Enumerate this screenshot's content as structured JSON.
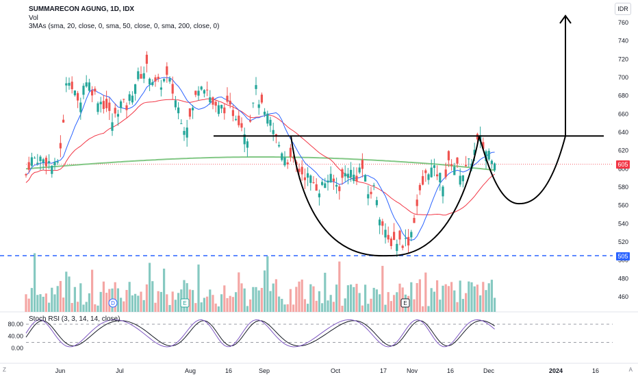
{
  "header": {
    "title": "SUMMARECON AGUNG, 1D, IDX",
    "volume_label": "Vol",
    "ma_label": "3MAs (sma, 20, close, 0, sma, 50, close, 0, sma, 200, close, 0)",
    "currency": "IDR"
  },
  "rsi_panel": {
    "label": "Stoch RSI (3, 3, 14, 14, close)",
    "ticks": [
      "80.00",
      "40.00",
      "0.00"
    ],
    "k_color": "#7e57c2",
    "d_color": "#131722"
  },
  "corners": {
    "left": "Z",
    "right": "A"
  },
  "colors": {
    "up": "#26a69a",
    "down": "#ef5350",
    "ma20": "#2962ff",
    "ma50": "#f23645",
    "ma200": "#81c784",
    "support": "#2962ff",
    "drawing": "#000000"
  },
  "chart_data": {
    "type": "candlestick",
    "symbol": "SUMMARECON AGUNG",
    "interval": "1D",
    "exchange": "IDX",
    "currency": "IDR",
    "last_price": 605,
    "support_level": 505,
    "resistance_level": 636,
    "y_ticks": [
      460,
      480,
      500,
      520,
      540,
      560,
      580,
      600,
      620,
      640,
      660,
      680,
      700,
      720,
      740,
      760
    ],
    "x_ticks": [
      "Jun",
      "Jul",
      "Aug",
      "16",
      "Sep",
      "Oct",
      "17",
      "Nov",
      "16",
      "Dec",
      "2024",
      "16"
    ],
    "events": [
      "D",
      "E",
      "E"
    ]
  }
}
